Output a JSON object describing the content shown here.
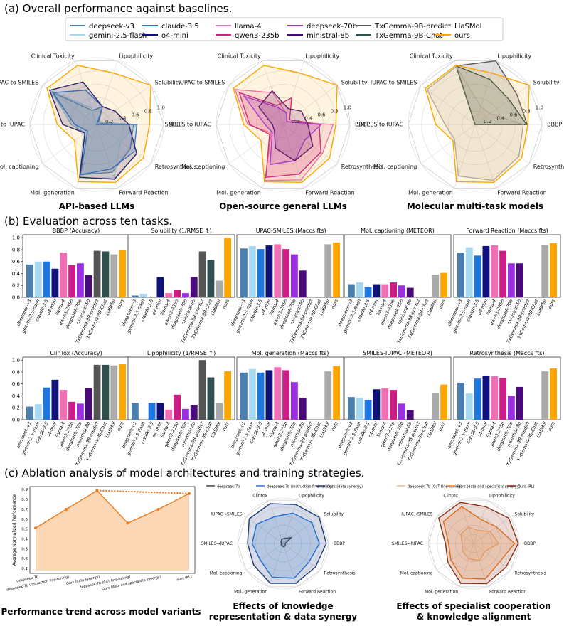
{
  "section_titles": {
    "a": "(a) Overall performance against baselines.",
    "b": "(b) Evaluation across ten tasks.",
    "c": "(c) Ablation analysis of model architectures and training strategies."
  },
  "legend": [
    {
      "name": "deepseek-v3",
      "color": "#4a7fb0"
    },
    {
      "name": "gemini-2.5-flash",
      "color": "#a8d8f0"
    },
    {
      "name": "claude-3.5",
      "color": "#1f77e0"
    },
    {
      "name": "o4-mini",
      "color": "#11117a"
    },
    {
      "name": "llama-4",
      "color": "#f06eb4"
    },
    {
      "name": "qwen3-235b",
      "color": "#cc1f86"
    },
    {
      "name": "deepseek-70b",
      "color": "#9b30e0"
    },
    {
      "name": "ministral-8b",
      "color": "#4b0a7a"
    },
    {
      "name": "TxGemma-9B-predict",
      "color": "#555555"
    },
    {
      "name": "TxGemma-9B-Chat",
      "color": "#2f4f4f"
    },
    {
      "name": "LlaSMol",
      "color": "#aaaaaa"
    },
    {
      "name": "ours",
      "color": "#ffa500"
    }
  ],
  "radar_axes": [
    "Clinical Toxicity",
    "Lipophilicity",
    "Solubility",
    "BBBP",
    "Retrosynthesis",
    "Forward Reaction",
    "Mol. generation",
    "Mol. captioning",
    "SMILES to IUPAC",
    "IUPAC to SMILES"
  ],
  "radar_ticks": [
    "0.2",
    "0.4",
    "0.6",
    "0.8",
    "1.0"
  ],
  "radar_groups": [
    {
      "title": "API-based LLMs",
      "models": [
        "deepseek-v3",
        "gemini-2.5-flash",
        "claude-3.5",
        "o4-mini",
        "ours"
      ]
    },
    {
      "title": "Open-source general LLMs",
      "models": [
        "llama-4",
        "qwen3-235b",
        "deepseek-70b",
        "ministral-8b",
        "ours"
      ]
    },
    {
      "title": "Molecular multi-task models",
      "models": [
        "TxGemma-9B-predict",
        "TxGemma-9B-Chat",
        "LlaSMol",
        "ours"
      ]
    }
  ],
  "models": [
    "deepseek-v3",
    "gemini-2.5-flash",
    "claude-3.5",
    "o4-mini",
    "llama-4",
    "qwen3-235b",
    "deepseek-70b",
    "ministral-8b",
    "TxGemma-9B-predict",
    "TxGemma-9B-Chat",
    "LlaSMol",
    "ours"
  ],
  "bar_tick_labels": [
    "deepseek-v3",
    "gemini-2.5-flash",
    "claude-3.5",
    "o4-mini",
    "llama-4",
    "qwen3-235b",
    "deepseek-70b",
    "ministral-8b",
    "TxGemma-9B-predict",
    "TxGemma-9B-Chat",
    "LlaSMol",
    "ours"
  ],
  "ablation": {
    "line_title": "Performance trend across model variants",
    "line_ylabel": "Average Normalized Performance",
    "line_yticks": [
      "0.1",
      "0.2",
      "0.3",
      "0.4",
      "0.5",
      "0.6",
      "0.7",
      "0.8",
      "0.9"
    ],
    "radar2_title_1": "Effects of knowledge",
    "radar2_title_2": "representation & data synergy",
    "radar3_title_1": "Effects of specialist cooperation",
    "radar3_title_2": "& knowledge alignment",
    "radar_axes": [
      "Clintox",
      "Lipophilicity",
      "Solubility",
      "BBBP",
      "Retrosynthesis",
      "Forward Reaction",
      "Mol. generation",
      "Mol. captioning",
      "SMILES→IUPAC",
      "IUPAC→SMILES"
    ]
  },
  "chart_data": [
    {
      "type": "radar",
      "title": "API-based LLMs",
      "axes": [
        "Clinical Toxicity",
        "Lipophilicity",
        "Solubility",
        "BBBP",
        "Retrosynthesis",
        "Forward Reaction",
        "Mol. generation",
        "Mol. captioning",
        "SMILES to IUPAC",
        "IUPAC to SMILES"
      ],
      "rlim": [
        0,
        1
      ],
      "series": [
        {
          "name": "deepseek-v3",
          "values": [
            0.22,
            0.28,
            0.03,
            0.55,
            0.62,
            0.75,
            0.79,
            0.22,
            0.38,
            0.82
          ]
        },
        {
          "name": "gemini-2.5-flash",
          "values": [
            0.26,
            0.0,
            0.06,
            0.6,
            0.44,
            0.84,
            0.85,
            0.25,
            0.37,
            0.86
          ]
        },
        {
          "name": "claude-3.5",
          "values": [
            0.54,
            0.28,
            0.0,
            0.6,
            0.69,
            0.7,
            0.79,
            0.17,
            0.33,
            0.81
          ]
        },
        {
          "name": "o4-mini",
          "values": [
            0.67,
            0.28,
            0.34,
            0.48,
            0.74,
            0.86,
            0.83,
            0.22,
            0.51,
            0.87
          ]
        },
        {
          "name": "ours",
          "values": [
            0.93,
            0.81,
            1.0,
            0.79,
            0.86,
            0.91,
            0.9,
            0.41,
            0.59,
            0.92
          ]
        }
      ]
    },
    {
      "type": "radar",
      "title": "Open-source general LLMs",
      "axes": [
        "Clinical Toxicity",
        "Lipophilicity",
        "Solubility",
        "BBBP",
        "Retrosynthesis",
        "Forward Reaction",
        "Mol. generation",
        "Mol. captioning",
        "SMILES to IUPAC",
        "IUPAC to SMILES"
      ],
      "rlim": [
        0,
        1
      ],
      "series": [
        {
          "name": "llama-4",
          "values": [
            0.5,
            0.17,
            0.07,
            0.75,
            0.73,
            0.87,
            0.88,
            0.22,
            0.53,
            0.89
          ]
        },
        {
          "name": "qwen3-235b",
          "values": [
            0.3,
            0.42,
            0.12,
            0.54,
            0.7,
            0.78,
            0.83,
            0.25,
            0.5,
            0.81
          ]
        },
        {
          "name": "deepseek-70b",
          "values": [
            0.27,
            0.18,
            0.07,
            0.57,
            0.4,
            0.57,
            0.63,
            0.2,
            0.27,
            0.72
          ]
        },
        {
          "name": "ministral-8b",
          "values": [
            0.53,
            0.25,
            0.34,
            0.37,
            0.55,
            0.57,
            0.37,
            0.16,
            0.16,
            0.45
          ]
        },
        {
          "name": "ours",
          "values": [
            0.93,
            0.81,
            1.0,
            0.79,
            0.86,
            0.91,
            0.9,
            0.41,
            0.59,
            0.92
          ]
        }
      ]
    },
    {
      "type": "radar",
      "title": "Molecular multi-task models",
      "axes": [
        "Clinical Toxicity",
        "Lipophilicity",
        "Solubility",
        "BBBP",
        "Retrosynthesis",
        "Forward Reaction",
        "Mol. generation",
        "Mol. captioning",
        "SMILES to IUPAC",
        "IUPAC to SMILES"
      ],
      "rlim": [
        0,
        1
      ],
      "series": [
        {
          "name": "TxGemma-9B-predict",
          "values": [
            0.92,
            1.0,
            0.77,
            0.78,
            0,
            0,
            0,
            0,
            0,
            0
          ]
        },
        {
          "name": "TxGemma-9B-Chat",
          "values": [
            0.92,
            0.71,
            0.63,
            0.77,
            0,
            0,
            0,
            0,
            0,
            0
          ]
        },
        {
          "name": "LlaSMol",
          "values": [
            0.91,
            0.28,
            0.28,
            0.72,
            0.81,
            0.88,
            0.81,
            0.38,
            0.45,
            0.89
          ]
        },
        {
          "name": "ours",
          "values": [
            0.93,
            0.81,
            1.0,
            0.79,
            0.86,
            0.91,
            0.9,
            0.41,
            0.59,
            0.92
          ]
        }
      ]
    },
    {
      "type": "bar",
      "title": "BBBP (Accuracy)",
      "categories": [
        "deepseek-v3",
        "gemini-2.5-flash",
        "claude-3.5",
        "o4-mini",
        "llama-4",
        "qwen3-235b",
        "deepseek-70b",
        "ministral-8b",
        "TxGemma-9B-predict",
        "TxGemma-9B-Chat",
        "LlaSMol",
        "ours"
      ],
      "values": [
        0.55,
        0.6,
        0.6,
        0.48,
        0.75,
        0.54,
        0.57,
        0.37,
        0.78,
        0.77,
        0.72,
        0.79
      ],
      "ylim": [
        0,
        1.05
      ],
      "yticks": [
        "0.0",
        "0.2",
        "0.4",
        "0.6",
        "0.8",
        "1.0"
      ]
    },
    {
      "type": "bar",
      "title": "Solubility (1/RMSE ↑)",
      "categories": [
        "deepseek-v3",
        "gemini-2.5-flash",
        "claude-3.5",
        "o4-mini",
        "llama-4",
        "qwen3-235b",
        "deepseek-70b",
        "ministral-8b",
        "TxGemma-9B-predict",
        "TxGemma-9B-Chat",
        "LlaSMol",
        "ours"
      ],
      "values": [
        0.03,
        0.06,
        0.0,
        0.34,
        0.07,
        0.12,
        0.07,
        0.34,
        0.77,
        0.63,
        0.28,
        1.0
      ],
      "ylim": [
        0,
        1.05
      ]
    },
    {
      "type": "bar",
      "title": "IUPAC-SMILES (Maccs fts)",
      "categories": [
        "deepseek-v3",
        "gemini-2.5-flash",
        "claude-3.5",
        "o4-mini",
        "llama-4",
        "qwen3-235b",
        "deepseek-70b",
        "ministral-8b",
        "TxGemma-9B-predict",
        "TxGemma-9B-Chat",
        "LlaSMol",
        "ours"
      ],
      "values": [
        0.82,
        0.86,
        0.81,
        0.87,
        0.89,
        0.81,
        0.72,
        0.45,
        0,
        0,
        0.89,
        0.92
      ],
      "ylim": [
        0,
        1.05
      ]
    },
    {
      "type": "bar",
      "title": "Mol. captioning (METEOR)",
      "categories": [
        "deepseek-v3",
        "gemini-2.5-flash",
        "claude-3.5",
        "o4-mini",
        "llama-4",
        "qwen3-235b",
        "deepseek-70b",
        "ministral-8b",
        "TxGemma-9B-predict",
        "TxGemma-9B-Chat",
        "LlaSMol",
        "ours"
      ],
      "values": [
        0.22,
        0.25,
        0.17,
        0.22,
        0.22,
        0.25,
        0.2,
        0.16,
        0,
        0,
        0.38,
        0.41
      ],
      "ylim": [
        0,
        1.05
      ]
    },
    {
      "type": "bar",
      "title": "Forward Reaction (Maccs fts)",
      "categories": [
        "deepseek-v3",
        "gemini-2.5-flash",
        "claude-3.5",
        "o4-mini",
        "llama-4",
        "qwen3-235b",
        "deepseek-70b",
        "ministral-8b",
        "TxGemma-9B-predict",
        "TxGemma-9B-Chat",
        "LlaSMol",
        "ours"
      ],
      "values": [
        0.75,
        0.84,
        0.7,
        0.86,
        0.87,
        0.78,
        0.57,
        0.57,
        0,
        0,
        0.88,
        0.91
      ],
      "ylim": [
        0,
        1.05
      ]
    },
    {
      "type": "bar",
      "title": "ClinTox (Accuracy)",
      "categories": [
        "deepseek-v3",
        "gemini-2.5-flash",
        "claude-3.5",
        "o4-mini",
        "llama-4",
        "qwen3-235b",
        "deepseek-70b",
        "ministral-8b",
        "TxGemma-9B-predict",
        "TxGemma-9B-Chat",
        "LlaSMol",
        "ours"
      ],
      "values": [
        0.22,
        0.26,
        0.54,
        0.67,
        0.5,
        0.3,
        0.27,
        0.53,
        0.92,
        0.92,
        0.91,
        0.93
      ],
      "ylim": [
        0,
        1.05
      ],
      "yticks": [
        "0.0",
        "0.2",
        "0.4",
        "0.6",
        "0.8",
        "1.0"
      ]
    },
    {
      "type": "bar",
      "title": "Lipophilicity (1/RMSE ↑)",
      "categories": [
        "deepseek-v3",
        "gemini-2.5-flash",
        "claude-3.5",
        "o4-mini",
        "llama-4",
        "qwen3-235b",
        "deepseek-70b",
        "ministral-8b",
        "TxGemma-9B-predict",
        "TxGemma-9B-Chat",
        "LlaSMol",
        "ours"
      ],
      "values": [
        0.28,
        0.0,
        0.28,
        0.28,
        0.17,
        0.42,
        0.18,
        0.25,
        1.0,
        0.71,
        0.28,
        0.81
      ],
      "ylim": [
        0,
        1.05
      ]
    },
    {
      "type": "bar",
      "title": "Mol. generation (Maccs fts)",
      "categories": [
        "deepseek-v3",
        "gemini-2.5-flash",
        "claude-3.5",
        "o4-mini",
        "llama-4",
        "qwen3-235b",
        "deepseek-70b",
        "ministral-8b",
        "TxGemma-9B-predict",
        "TxGemma-9B-Chat",
        "LlaSMol",
        "ours"
      ],
      "values": [
        0.79,
        0.85,
        0.79,
        0.83,
        0.88,
        0.83,
        0.63,
        0.37,
        0,
        0,
        0.81,
        0.9
      ],
      "ylim": [
        0,
        1.05
      ]
    },
    {
      "type": "bar",
      "title": "SMILES-IUPAC (METEOR)",
      "categories": [
        "deepseek-v3",
        "gemini-2.5-flash",
        "claude-3.5",
        "o4-mini",
        "llama-4",
        "qwen3-235b",
        "deepseek-70b",
        "ministral-8b",
        "TxGemma-9B-predict",
        "TxGemma-9B-Chat",
        "LlaSMol",
        "ours"
      ],
      "values": [
        0.38,
        0.37,
        0.33,
        0.51,
        0.53,
        0.5,
        0.27,
        0.16,
        0,
        0,
        0.45,
        0.59
      ],
      "ylim": [
        0,
        1.05
      ]
    },
    {
      "type": "bar",
      "title": "Retrosynthesis (Maccs fts)",
      "categories": [
        "deepseek-v3",
        "gemini-2.5-flash",
        "claude-3.5",
        "o4-mini",
        "llama-4",
        "qwen3-235b",
        "deepseek-70b",
        "ministral-8b",
        "TxGemma-9B-predict",
        "TxGemma-9B-Chat",
        "LlaSMol",
        "ours"
      ],
      "values": [
        0.62,
        0.44,
        0.69,
        0.74,
        0.73,
        0.7,
        0.4,
        0.55,
        0,
        0,
        0.81,
        0.86
      ],
      "ylim": [
        0,
        1.05
      ]
    },
    {
      "type": "area",
      "title": "Performance trend across model variants",
      "categories": [
        "deepseek-7b",
        "deepseek-7b (instruction fine-tuning)",
        "Ours (data synergy)",
        "deepseek-7b (CoT fine-tuning)",
        "Ours (data and specialists synergy)",
        "ours (RL)"
      ],
      "values": [
        0.51,
        0.7,
        0.89,
        0.56,
        0.7,
        0.86
      ],
      "ylim": [
        0.05,
        0.93
      ],
      "ylabel": "Average Normalized Performance"
    },
    {
      "type": "radar",
      "title": "Effects of knowledge representation & data synergy",
      "axes": [
        "Clintox",
        "Lipophilicity",
        "Solubility",
        "BBBP",
        "Retrosynthesis",
        "Forward Reaction",
        "Mol. generation",
        "Mol. captioning",
        "SMILES→IUPAC",
        "IUPAC→SMILES"
      ],
      "rlim": [
        0,
        1
      ],
      "series": [
        {
          "name": "deepseek-7b",
          "color": "#444444",
          "values": [
            0.1,
            0.12,
            0.22,
            0.05,
            0.06,
            0.08,
            0.06,
            0.05,
            0.04,
            0.06
          ]
        },
        {
          "name": "deepseek-7b (instruction fine-tuning)",
          "color": "#1f77e0",
          "values": [
            0.62,
            0.7,
            0.78,
            0.8,
            0.7,
            0.8,
            0.78,
            0.62,
            0.68,
            0.72
          ]
        },
        {
          "name": "Ours (data synergy)",
          "color": "#1a3a7a",
          "values": [
            0.92,
            0.9,
            0.98,
            0.95,
            0.88,
            0.92,
            0.92,
            0.8,
            0.78,
            0.92
          ]
        }
      ]
    },
    {
      "type": "radar",
      "title": "Effects of specialist cooperation & knowledge alignment",
      "axes": [
        "Clintox",
        "Lipophilicity",
        "Solubility",
        "BBBP",
        "Retrosynthesis",
        "Forward Reaction",
        "Mol. generation",
        "Mol. captioning",
        "SMILES→IUPAC",
        "IUPAC→SMILES"
      ],
      "rlim": [
        0,
        1
      ],
      "series": [
        {
          "name": "deepseek-7b (CoT fine-tuning)",
          "color": "#f6c08a",
          "values": [
            0.38,
            0.3,
            0.45,
            0.55,
            0.3,
            0.4,
            0.35,
            0.3,
            0.25,
            0.35
          ]
        },
        {
          "name": "Ours (data and specialists synergy)",
          "color": "#f07a1a",
          "values": [
            0.85,
            0.55,
            0.62,
            0.9,
            0.7,
            0.82,
            0.8,
            0.62,
            0.55,
            0.82
          ]
        },
        {
          "name": "Ours (RL)",
          "color": "#8b2c0e",
          "values": [
            0.95,
            0.85,
            0.95,
            0.98,
            0.88,
            0.93,
            0.92,
            0.7,
            0.62,
            0.95
          ]
        }
      ]
    }
  ]
}
